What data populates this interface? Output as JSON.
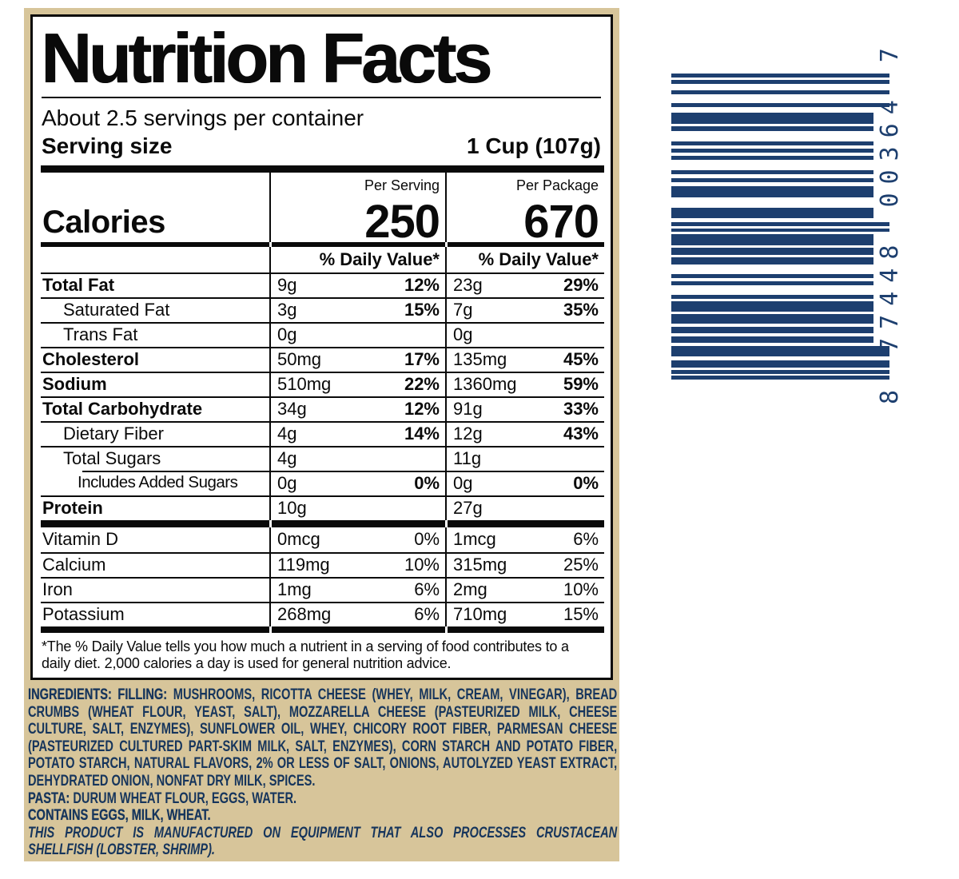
{
  "label": {
    "title": "Nutrition Facts",
    "servings_per_container": "About 2.5 servings per container",
    "serving_size_label": "Serving size",
    "serving_size_value": "1 Cup (107g)",
    "calories_label": "Calories",
    "serving_column": {
      "header": "Per Serving",
      "calories": "250",
      "dv_header": "% Daily Value*"
    },
    "package_column": {
      "header": "Per Package",
      "calories": "670",
      "dv_header": "% Daily Value*"
    },
    "nutrients": [
      {
        "name": "Total Fat",
        "bold": true,
        "indent": 0,
        "serv_amt": "9g",
        "serv_dv": "12%",
        "pack_amt": "23g",
        "pack_dv": "29%"
      },
      {
        "name": "Saturated Fat",
        "bold": false,
        "indent": 1,
        "serv_amt": "3g",
        "serv_dv": "15%",
        "pack_amt": "7g",
        "pack_dv": "35%"
      },
      {
        "name": "Trans Fat",
        "bold": false,
        "indent": 1,
        "serv_amt": "0g",
        "serv_dv": "",
        "pack_amt": "0g",
        "pack_dv": ""
      },
      {
        "name": "Cholesterol",
        "bold": true,
        "indent": 0,
        "serv_amt": "50mg",
        "serv_dv": "17%",
        "pack_amt": "135mg",
        "pack_dv": "45%"
      },
      {
        "name": "Sodium",
        "bold": true,
        "indent": 0,
        "serv_amt": "510mg",
        "serv_dv": "22%",
        "pack_amt": "1360mg",
        "pack_dv": "59%"
      },
      {
        "name": "Total Carbohydrate",
        "bold": true,
        "indent": 0,
        "serv_amt": "34g",
        "serv_dv": "12%",
        "pack_amt": "91g",
        "pack_dv": "33%"
      },
      {
        "name": "Dietary Fiber",
        "bold": false,
        "indent": 1,
        "serv_amt": "4g",
        "serv_dv": "14%",
        "pack_amt": "12g",
        "pack_dv": "43%"
      },
      {
        "name": "Total Sugars",
        "bold": false,
        "indent": 1,
        "serv_amt": "4g",
        "serv_dv": "",
        "pack_amt": "11g",
        "pack_dv": ""
      },
      {
        "name": "Includes Added Sugars",
        "bold": false,
        "indent": 2,
        "partial_line": true,
        "serv_amt": "0g",
        "serv_dv": "0%",
        "pack_amt": "0g",
        "pack_dv": "0%"
      },
      {
        "name": "Protein",
        "bold": true,
        "indent": 0,
        "serv_amt": "10g",
        "serv_dv": "",
        "pack_amt": "27g",
        "pack_dv": ""
      }
    ],
    "vitamins": [
      {
        "name": "Vitamin D",
        "serv_amt": "0mcg",
        "serv_dv": "0%",
        "pack_amt": "1mcg",
        "pack_dv": "6%"
      },
      {
        "name": "Calcium",
        "serv_amt": "119mg",
        "serv_dv": "10%",
        "pack_amt": "315mg",
        "pack_dv": "25%"
      },
      {
        "name": "Iron",
        "serv_amt": "1mg",
        "serv_dv": "6%",
        "pack_amt": "2mg",
        "pack_dv": "10%"
      },
      {
        "name": "Potassium",
        "serv_amt": "268mg",
        "serv_dv": "6%",
        "pack_amt": "710mg",
        "pack_dv": "15%"
      }
    ],
    "footnote": "*The % Daily Value tells you how much a nutrient in a serving of food contributes to a daily diet. 2,000 calories a day is used for general nutrition advice."
  },
  "ingredients": {
    "lead": "INGREDIENTS: FILLING: ",
    "filling": "MUSHROOMS, RICOTTA CHEESE (WHEY, MILK, CREAM, VINEGAR), BREAD CRUMBS (WHEAT FLOUR, YEAST, SALT), MOZZARELLA CHEESE (PASTEURIZED MILK, CHEESE CULTURE, SALT, ENZYMES), SUNFLOWER OIL, WHEY, CHICORY ROOT FIBER, PARMESAN CHEESE (PASTEURIZED CULTURED PART-SKIM MILK, SALT, ENZYMES), CORN STARCH AND POTATO FIBER, POTATO STARCH, NATURAL FLAVORS, 2% OR LESS OF SALT, ONIONS, AUTOLYZED YEAST EXTRACT, DEHYDRATED ONION, NONFAT DRY MILK, SPICES.",
    "pasta_lead": "PASTA: ",
    "pasta": "DURUM WHEAT FLOUR, EGGS, WATER.",
    "contains": "CONTAINS EGGS, MILK, WHEAT.",
    "allergen_statement": "THIS PRODUCT IS MANUFACTURED ON EQUIPMENT THAT ALSO PROCESSES CRUSTACEAN SHELLFISH (LOBSTER, SHRIMP)."
  },
  "barcode": {
    "digits": "8 77448 00364 7",
    "bars": [
      {
        "h": 5,
        "g": 3,
        "long": true
      },
      {
        "h": 5,
        "g": 8,
        "long": true
      },
      {
        "h": 5,
        "g": 11,
        "long": true
      },
      {
        "h": 5,
        "g": 7,
        "long": true
      },
      {
        "h": 14,
        "g": 3,
        "long": false
      },
      {
        "h": 6,
        "g": 13,
        "long": false
      },
      {
        "h": 5,
        "g": 4,
        "long": false
      },
      {
        "h": 5,
        "g": 4,
        "long": false
      },
      {
        "h": 5,
        "g": 13,
        "long": false
      },
      {
        "h": 5,
        "g": 5,
        "long": false
      },
      {
        "h": 5,
        "g": 5,
        "long": false
      },
      {
        "h": 14,
        "g": 13,
        "long": false
      },
      {
        "h": 13,
        "g": 5,
        "long": false
      },
      {
        "h": 5,
        "g": 3,
        "long": true
      },
      {
        "h": 4,
        "g": 3,
        "long": true
      },
      {
        "h": 14,
        "g": 3,
        "long": false
      },
      {
        "h": 9,
        "g": 3,
        "long": false
      },
      {
        "h": 9,
        "g": 12,
        "long": false
      },
      {
        "h": 5,
        "g": 4,
        "long": false
      },
      {
        "h": 5,
        "g": 12,
        "long": false
      },
      {
        "h": 5,
        "g": 3,
        "long": false
      },
      {
        "h": 13,
        "g": 3,
        "long": false
      },
      {
        "h": 12,
        "g": 4,
        "long": false
      },
      {
        "h": 8,
        "g": 4,
        "long": false
      },
      {
        "h": 8,
        "g": 4,
        "long": false
      },
      {
        "h": 13,
        "g": 5,
        "long": true
      },
      {
        "h": 9,
        "g": 3,
        "long": true
      },
      {
        "h": 5,
        "g": 2,
        "long": true
      },
      {
        "h": 5,
        "g": 0,
        "long": true
      }
    ]
  },
  "colors": {
    "tan_background": "#d7c59a",
    "ingredients_navy": "#16355c",
    "barcode_navy": "#1d3f6f",
    "label_ink": "#0a0a0a"
  }
}
